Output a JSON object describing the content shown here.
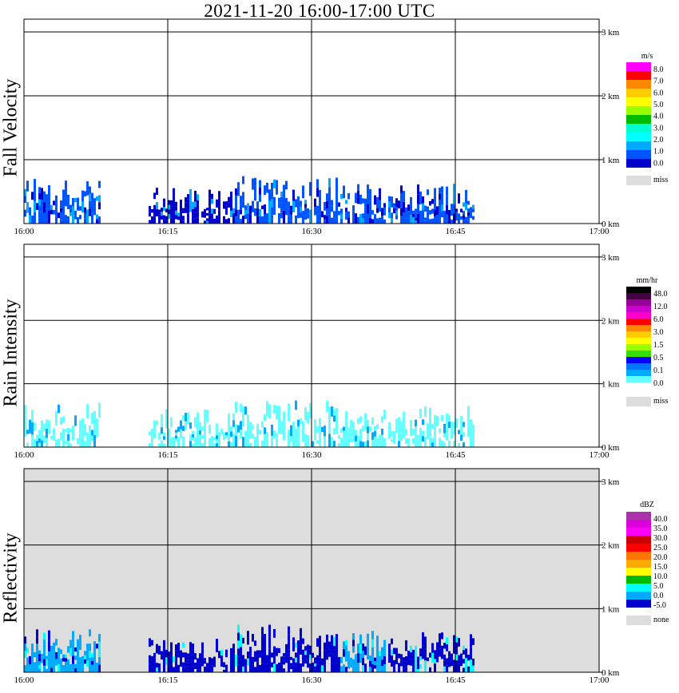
{
  "title": "2021-11-20   16:00-17:00 UTC",
  "x_tick_labels": [
    "16:00",
    "16:15",
    "16:30",
    "16:45",
    "17:00"
  ],
  "y_tick_labels": [
    "0 km",
    "1 km",
    "2 km",
    "3 km"
  ],
  "chart_data": [
    {
      "type": "heatmap",
      "title": "Fall Velocity",
      "x_range": [
        "16:00",
        "17:00"
      ],
      "y_range_km": [
        0,
        3.0
      ],
      "background": "#ffffff",
      "legend": {
        "unit": "m/s",
        "labels": [
          "8.0",
          "7.0",
          "6.0",
          "5.0",
          "4.0",
          "3.0",
          "2.0",
          "1.0",
          "0.0",
          "miss"
        ],
        "colors": [
          "#ff00ff",
          "#ff0000",
          "#ff8800",
          "#ffcc00",
          "#ffff00",
          "#99ff00",
          "#00bb00",
          "#00ffcc",
          "#00ffff",
          "#00aaff",
          "#0055ff",
          "#0000cc"
        ],
        "miss_color": "#dddddd"
      },
      "echo_clusters": [
        {
          "start": "16:00",
          "end": "16:08",
          "top_km": 0.7,
          "dominant": "#0055ff"
        },
        {
          "start": "16:13",
          "end": "16:22",
          "top_km": 0.6,
          "dominant": "#0000cc"
        },
        {
          "start": "16:22",
          "end": "16:33",
          "top_km": 0.75,
          "dominant": "#0055ff"
        },
        {
          "start": "16:33",
          "end": "16:38",
          "top_km": 0.65,
          "dominant": "#0055ff"
        },
        {
          "start": "16:38",
          "end": "16:47",
          "top_km": 0.65,
          "dominant": "#0055ff"
        }
      ]
    },
    {
      "type": "heatmap",
      "title": "Rain Intensity",
      "x_range": [
        "16:00",
        "17:00"
      ],
      "y_range_km": [
        0,
        3.0
      ],
      "background": "#ffffff",
      "legend": {
        "unit": "mm/hr",
        "labels": [
          "48.0",
          "12.0",
          "6.0",
          "3.0",
          "1.5",
          "0.5",
          "0.1",
          "0.0",
          "miss"
        ],
        "colors": [
          "#000000",
          "#440044",
          "#990099",
          "#cc00cc",
          "#ff00cc",
          "#ff0000",
          "#ff8800",
          "#ffcc00",
          "#ffff00",
          "#99ff00",
          "#33dd00",
          "#0000ff",
          "#0077ff",
          "#00aaff",
          "#66ffff",
          "#ffffff"
        ],
        "miss_color": "#dddddd"
      },
      "echo_clusters": [
        {
          "start": "16:00",
          "end": "16:08",
          "top_km": 0.7,
          "dominant": "#66ffff"
        },
        {
          "start": "16:13",
          "end": "16:22",
          "top_km": 0.6,
          "dominant": "#66ffff"
        },
        {
          "start": "16:22",
          "end": "16:33",
          "top_km": 0.75,
          "dominant": "#66ffff"
        },
        {
          "start": "16:33",
          "end": "16:38",
          "top_km": 0.65,
          "dominant": "#66ffff"
        },
        {
          "start": "16:38",
          "end": "16:47",
          "top_km": 0.65,
          "dominant": "#66ffff"
        }
      ]
    },
    {
      "type": "heatmap",
      "title": "Reflectivity",
      "x_range": [
        "16:00",
        "17:00"
      ],
      "y_range_km": [
        0,
        3.0
      ],
      "background": "#dddddd",
      "legend": {
        "unit": "dBZ",
        "labels": [
          "40.0",
          "35.0",
          "30.0",
          "25.0",
          "20.0",
          "15.0",
          "10.0",
          "5.0",
          "0.0",
          "-5.0",
          "none"
        ],
        "colors": [
          "#aa33aa",
          "#dd00dd",
          "#ff00ff",
          "#cc0000",
          "#ff0000",
          "#ff7700",
          "#ffaa00",
          "#ffff00",
          "#00bb00",
          "#00ffff",
          "#00aaff",
          "#0000cc"
        ],
        "miss_color": "#dddddd"
      },
      "echo_clusters": [
        {
          "start": "16:00",
          "end": "16:08",
          "top_km": 0.7,
          "dominant": "#00aaff"
        },
        {
          "start": "16:13",
          "end": "16:22",
          "top_km": 0.6,
          "dominant": "#0000cc"
        },
        {
          "start": "16:22",
          "end": "16:33",
          "top_km": 0.75,
          "dominant": "#0000cc"
        },
        {
          "start": "16:33",
          "end": "16:38",
          "top_km": 0.65,
          "dominant": "#00aaff"
        },
        {
          "start": "16:38",
          "end": "16:47",
          "top_km": 0.65,
          "dominant": "#0000cc"
        }
      ]
    }
  ]
}
